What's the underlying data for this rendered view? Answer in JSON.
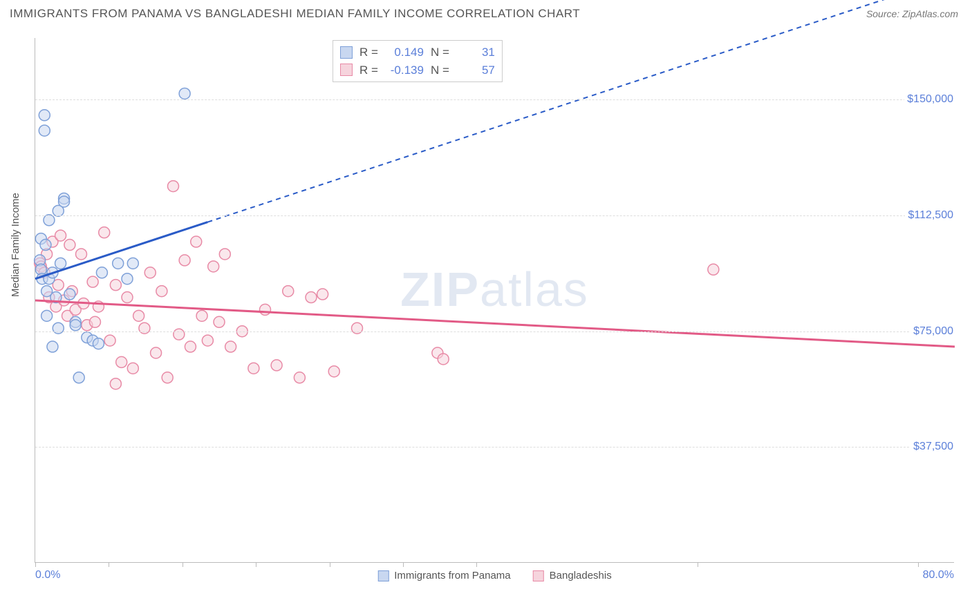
{
  "header": {
    "title": "IMMIGRANTS FROM PANAMA VS BANGLADESHI MEDIAN FAMILY INCOME CORRELATION CHART",
    "source": "Source: ZipAtlas.com"
  },
  "chart": {
    "type": "scatter",
    "y_axis_title": "Median Family Income",
    "xlim": [
      0,
      80
    ],
    "ylim": [
      0,
      170000
    ],
    "x_tick_positions_pct": [
      0,
      8,
      16,
      24,
      32,
      40,
      48,
      72,
      96
    ],
    "x_label_min": "0.0%",
    "x_label_max": "80.0%",
    "y_gridlines": [
      37500,
      75000,
      112500,
      150000
    ],
    "y_labels": [
      "$37,500",
      "$75,000",
      "$112,500",
      "$150,000"
    ],
    "background_color": "#ffffff",
    "grid_color": "#dddddd",
    "axis_color": "#bbbbbb",
    "label_color": "#5b7fd9",
    "series": {
      "panama": {
        "label": "Immigrants from Panama",
        "fill": "#c8d7f0",
        "stroke": "#7ea0d8",
        "trend_color": "#2a5bc7",
        "r_value": "0.149",
        "n_value": "31",
        "marker_radius": 8,
        "trend": {
          "x1": 0,
          "y1": 92000,
          "x2": 80,
          "y2": 190000,
          "solid_until_x": 15
        },
        "points": [
          [
            0.4,
            98000
          ],
          [
            0.5,
            95000
          ],
          [
            0.5,
            105000
          ],
          [
            0.6,
            92000
          ],
          [
            0.8,
            145000
          ],
          [
            0.8,
            140000
          ],
          [
            0.9,
            103000
          ],
          [
            1.0,
            88000
          ],
          [
            1.0,
            80000
          ],
          [
            1.2,
            111000
          ],
          [
            1.2,
            92000
          ],
          [
            1.5,
            94000
          ],
          [
            1.8,
            86000
          ],
          [
            2.0,
            114000
          ],
          [
            2.2,
            97000
          ],
          [
            2.5,
            118000
          ],
          [
            2.5,
            117000
          ],
          [
            3.0,
            87000
          ],
          [
            3.5,
            78000
          ],
          [
            3.5,
            77000
          ],
          [
            3.8,
            60000
          ],
          [
            4.5,
            73000
          ],
          [
            5.0,
            72000
          ],
          [
            5.5,
            71000
          ],
          [
            5.8,
            94000
          ],
          [
            7.2,
            97000
          ],
          [
            8.0,
            92000
          ],
          [
            8.5,
            97000
          ],
          [
            13.0,
            152000
          ],
          [
            2.0,
            76000
          ],
          [
            1.5,
            70000
          ]
        ]
      },
      "bangladeshi": {
        "label": "Bangladeshis",
        "fill": "#f6d4dd",
        "stroke": "#e88aa6",
        "trend_color": "#e25a86",
        "r_value": "-0.139",
        "n_value": "57",
        "marker_radius": 8,
        "trend": {
          "x1": 0,
          "y1": 85000,
          "x2": 80,
          "y2": 70000,
          "solid_until_x": 80
        },
        "points": [
          [
            0.4,
            97000
          ],
          [
            0.5,
            96000
          ],
          [
            0.8,
            94000
          ],
          [
            1.0,
            100000
          ],
          [
            1.2,
            86000
          ],
          [
            1.5,
            104000
          ],
          [
            1.8,
            83000
          ],
          [
            2.0,
            90000
          ],
          [
            2.2,
            106000
          ],
          [
            2.5,
            85000
          ],
          [
            2.8,
            80000
          ],
          [
            3.0,
            103000
          ],
          [
            3.2,
            88000
          ],
          [
            3.5,
            82000
          ],
          [
            4.0,
            100000
          ],
          [
            4.2,
            84000
          ],
          [
            4.5,
            77000
          ],
          [
            5.0,
            91000
          ],
          [
            5.2,
            78000
          ],
          [
            5.5,
            83000
          ],
          [
            6.0,
            107000
          ],
          [
            6.5,
            72000
          ],
          [
            7.0,
            90000
          ],
          [
            7.5,
            65000
          ],
          [
            8.0,
            86000
          ],
          [
            8.5,
            63000
          ],
          [
            9.0,
            80000
          ],
          [
            9.5,
            76000
          ],
          [
            10.0,
            94000
          ],
          [
            10.5,
            68000
          ],
          [
            11.0,
            88000
          ],
          [
            11.5,
            60000
          ],
          [
            12.0,
            122000
          ],
          [
            12.5,
            74000
          ],
          [
            13.0,
            98000
          ],
          [
            13.5,
            70000
          ],
          [
            14.0,
            104000
          ],
          [
            14.5,
            80000
          ],
          [
            15.0,
            72000
          ],
          [
            15.5,
            96000
          ],
          [
            16.0,
            78000
          ],
          [
            16.5,
            100000
          ],
          [
            17.0,
            70000
          ],
          [
            18.0,
            75000
          ],
          [
            19.0,
            63000
          ],
          [
            20.0,
            82000
          ],
          [
            21.0,
            64000
          ],
          [
            22.0,
            88000
          ],
          [
            23.0,
            60000
          ],
          [
            24.0,
            86000
          ],
          [
            25.0,
            87000
          ],
          [
            26.0,
            62000
          ],
          [
            28.0,
            76000
          ],
          [
            35.0,
            68000
          ],
          [
            35.5,
            66000
          ],
          [
            59.0,
            95000
          ],
          [
            7.0,
            58000
          ]
        ]
      }
    },
    "watermark": "ZIPatlas",
    "stats_box": {
      "r_label": "R =",
      "n_label": "N ="
    }
  }
}
